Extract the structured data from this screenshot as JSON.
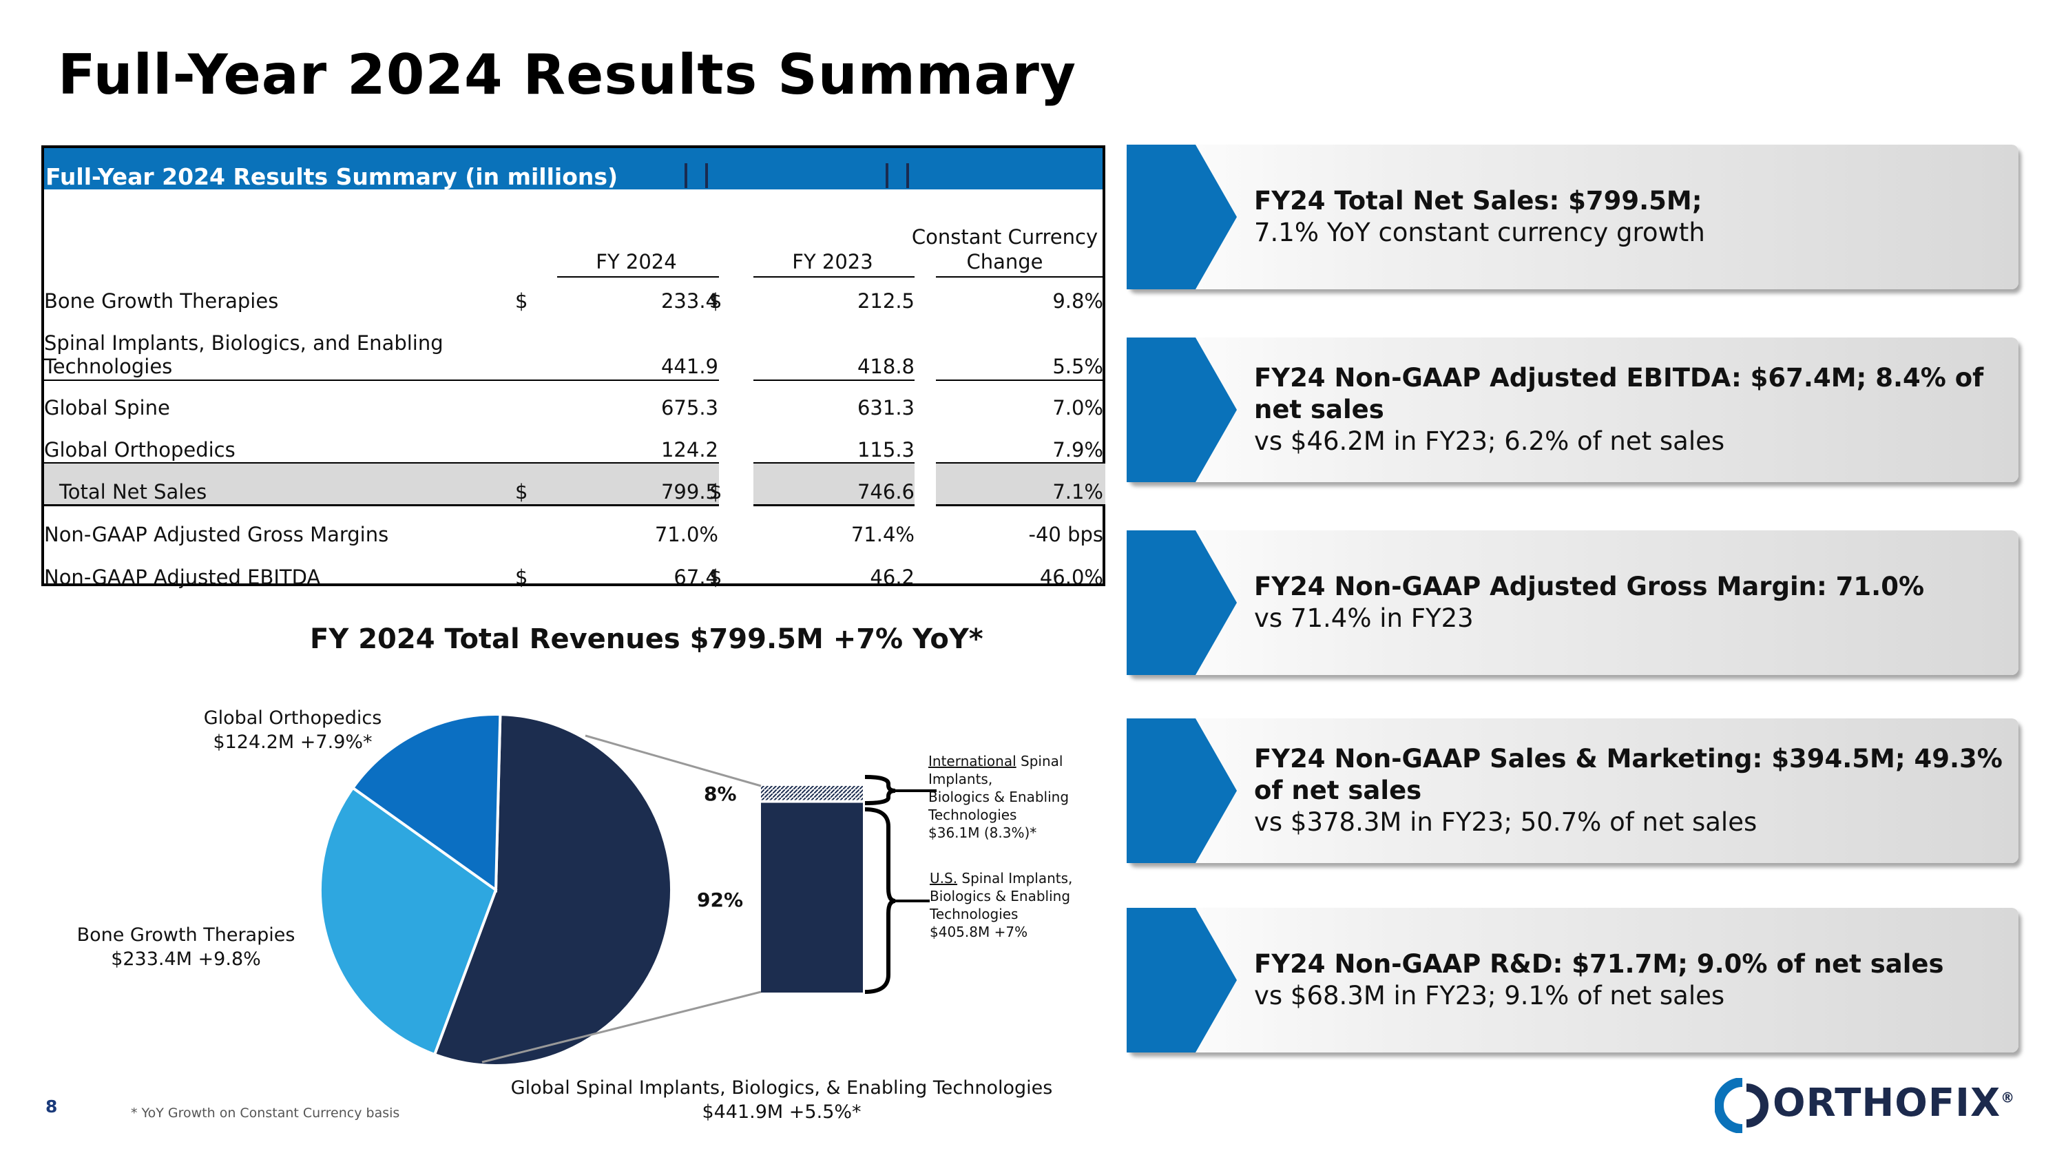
{
  "title": "Full-Year 2024 Results Summary",
  "table": {
    "caption": "Full-Year 2024 Results Summary (in millions)",
    "columns": [
      "FY 2024",
      "FY 2023",
      "Constant Currency Change"
    ],
    "col3_line1": "Constant Currency",
    "col3_line2": "Change",
    "rows": [
      {
        "label": "Bone Growth Therapies",
        "fy24_cur": "$",
        "fy24": "233.4",
        "fy23_cur": "$",
        "fy23": "212.5",
        "change": "9.8%"
      },
      {
        "label": "Spinal Implants, Biologics, and Enabling Technologies",
        "label_line1": "Spinal Implants, Biologics, and Enabling",
        "label_line2": "Technologies",
        "fy24": "441.9",
        "fy23": "418.8",
        "change": "5.5%"
      },
      {
        "label": "Global Spine",
        "fy24": "675.3",
        "fy23": "631.3",
        "change": "7.0%"
      },
      {
        "label": "Global Orthopedics",
        "fy24": "124.2",
        "fy23": "115.3",
        "change": "7.9%"
      },
      {
        "label": "Total Net Sales",
        "fy24_cur": "$",
        "fy24": "799.5",
        "fy23_cur": "$",
        "fy23": "746.6",
        "change": "7.1%"
      },
      {
        "label": "Non-GAAP Adjusted Gross Margins",
        "fy24": "71.0%",
        "fy23": "71.4%",
        "change": "-40 bps"
      },
      {
        "label": "Non-GAAP Adjusted EBITDA",
        "fy24_cur": "$",
        "fy24": "67.4",
        "fy23_cur": "$",
        "fy23": "46.2",
        "change": "46.0%"
      }
    ]
  },
  "chart_data": {
    "type": "pie",
    "title": "FY 2024 Total Revenues $799.5M +7% YoY*",
    "slices": [
      {
        "name": "Global Spinal Implants, Biologics, & Enabling Technologies",
        "value": 441.9,
        "growth": "+5.5%*",
        "color": "#1c2d4f"
      },
      {
        "name": "Bone Growth Therapies",
        "value": 233.4,
        "growth": "+9.8%",
        "color": "#2ea7e0"
      },
      {
        "name": "Global Orthopedics",
        "value": 124.2,
        "growth": "+7.9%*",
        "color": "#0b6fc2"
      }
    ],
    "breakdown": {
      "type": "stacked-bar",
      "segments": [
        {
          "name": "International Spinal Implants, Biologics & Enabling Technologies",
          "value": 36.1,
          "percent": 8
        },
        {
          "name": "U.S. Spinal Implants, Biologics & Enabling Technologies",
          "value": 405.8,
          "percent": 92
        }
      ]
    }
  },
  "pie_labels": {
    "ortho_l1": "Global Orthopedics",
    "ortho_l2": "$124.2M +7.9%*",
    "bone_l1": "Bone Growth Therapies",
    "bone_l2": "$233.4M +9.8%",
    "spine_l1": "Global Spinal Implants, Biologics, & Enabling Technologies",
    "spine_l2": "$441.9M +5.5%*",
    "pct_small": "8%",
    "pct_large": "92%",
    "intl_underlined": "International",
    "intl_rest1": " Spinal",
    "intl_l2": "Implants,",
    "intl_l3": "Biologics & Enabling",
    "intl_l4": "Technologies",
    "intl_l5": "$36.1M (8.3%)*",
    "us_underlined": "U.S.",
    "us_rest1": " Spinal Implants,",
    "us_l2": "Biologics & Enabling",
    "us_l3": "Technologies",
    "us_l4": "$405.8M +7%"
  },
  "cards": [
    {
      "head": "FY24 Total Net Sales: $799.5M;",
      "sub": "7.1% YoY constant currency growth"
    },
    {
      "head": "FY24 Non-GAAP Adjusted EBITDA: $67.4M; 8.4% of net sales",
      "sub": "vs $46.2M in FY23; 6.2% of net sales"
    },
    {
      "head": "FY24 Non-GAAP Adjusted Gross Margin: 71.0%",
      "sub": "vs 71.4% in FY23"
    },
    {
      "head": "FY24 Non-GAAP Sales & Marketing: $394.5M; 49.3% of net sales",
      "sub": "vs $378.3M in FY23; 50.7% of net sales"
    },
    {
      "head": "FY24 Non-GAAP R&D: $71.7M; 9.0% of net sales",
      "sub": "vs $68.3M in FY23; 9.1% of net sales"
    }
  ],
  "footnote": "* YoY Growth on Constant Currency basis",
  "page_number": "8",
  "logo": {
    "text": "ORTHOFIX",
    "mark": "®"
  },
  "colors": {
    "accent": "#0a72ba",
    "navy": "#1c2d4f",
    "sky": "#2ea7e0",
    "blue": "#0b6fc2"
  }
}
